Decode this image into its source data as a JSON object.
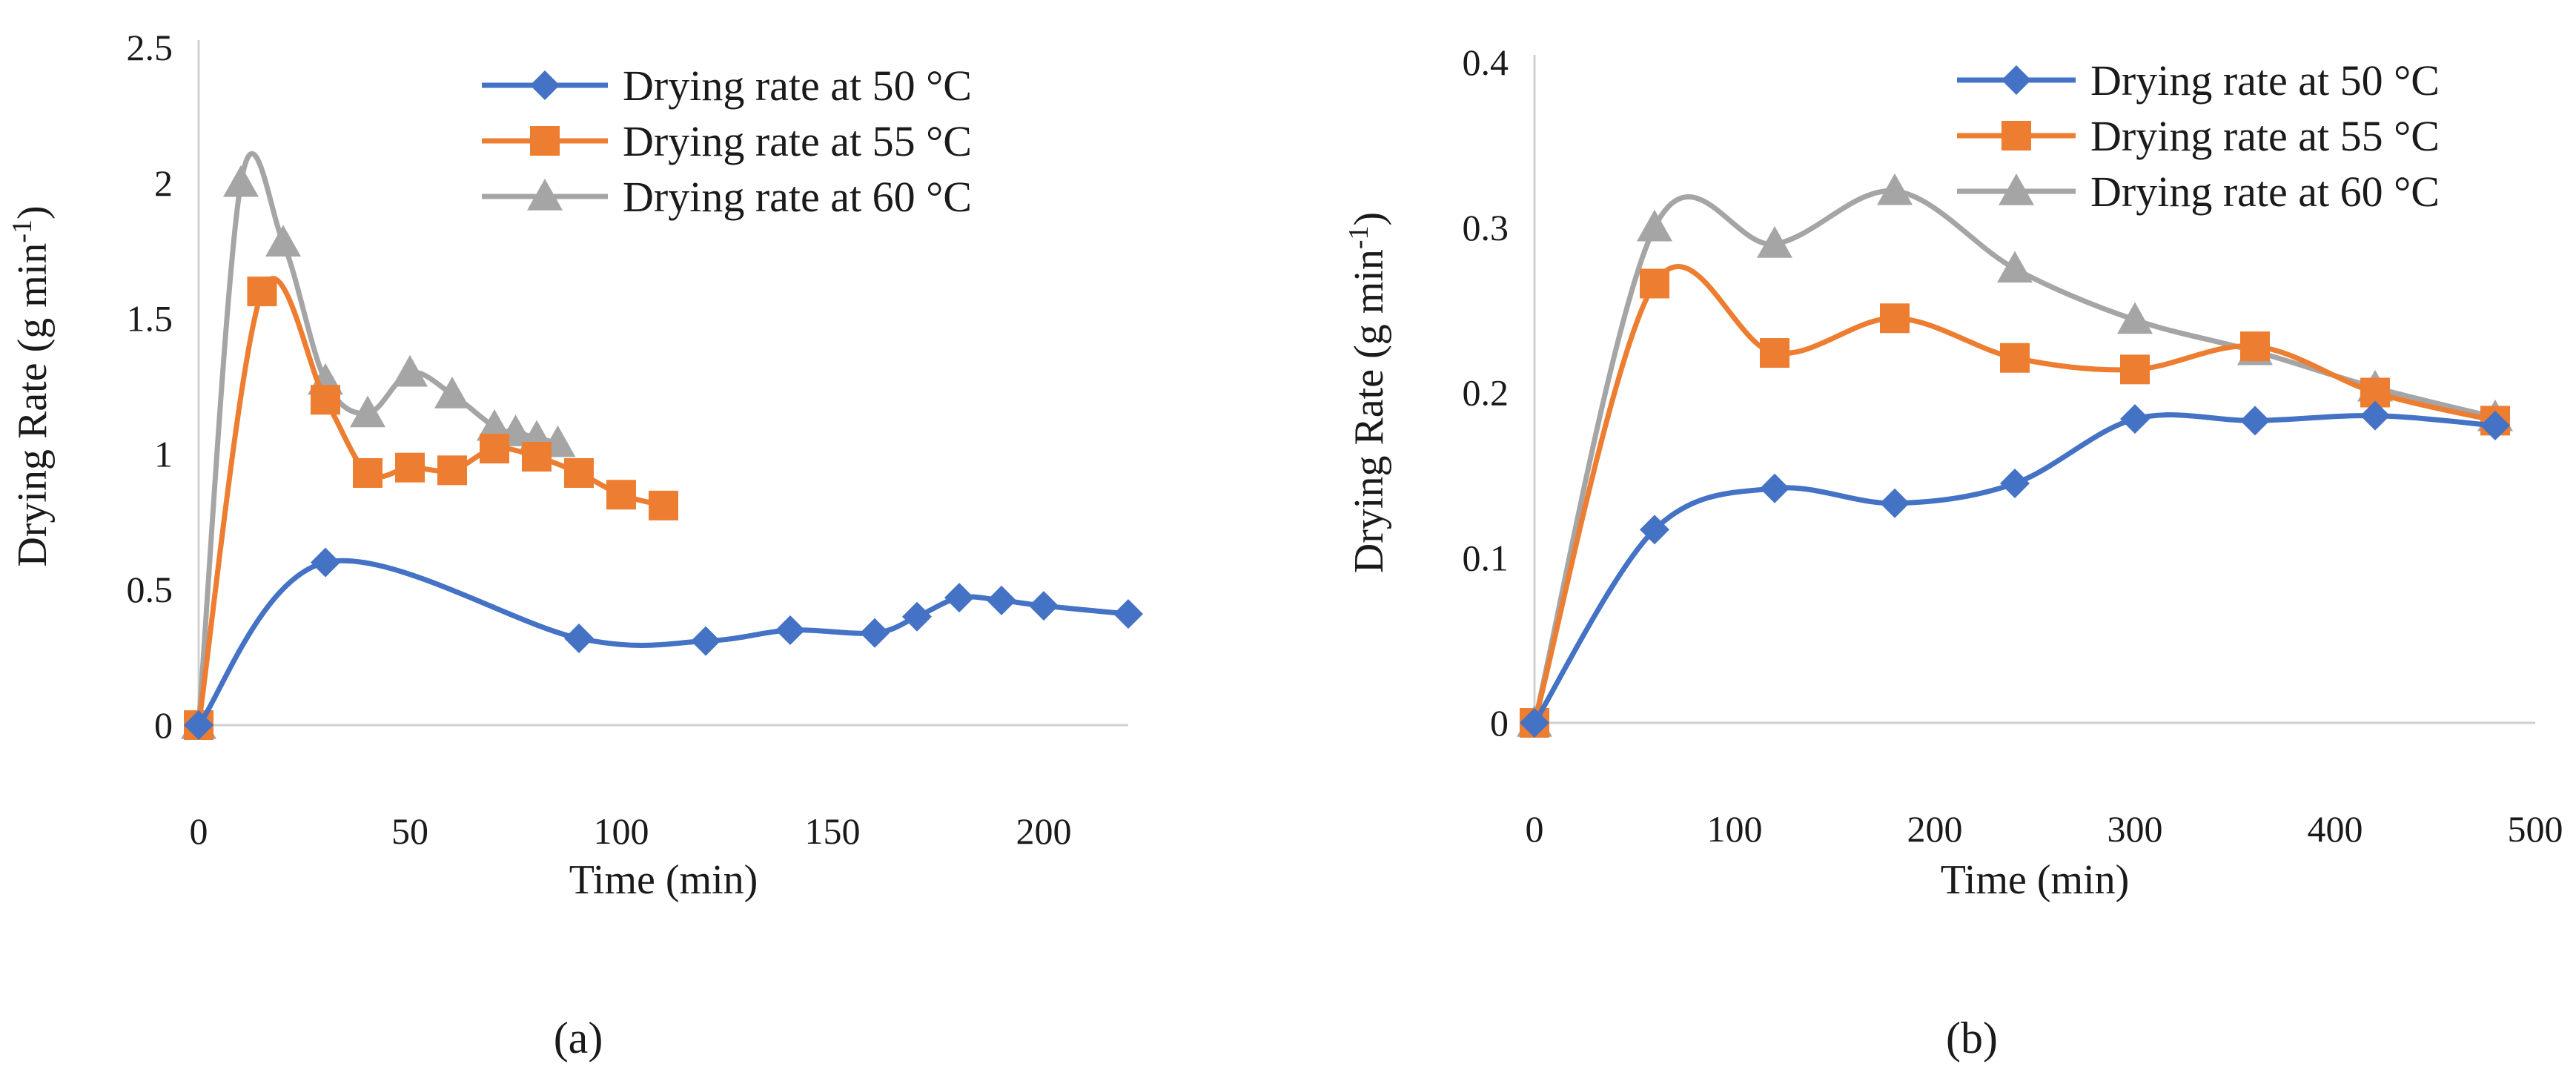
{
  "chart_data": [
    {
      "type": "line",
      "panel_label": "(a)",
      "xlabel": "Time (min)",
      "ylabel_main": "Drying Rate (g min",
      "ylabel_sup": "-1",
      "ylabel_close": ")",
      "xlim": [
        0,
        220
      ],
      "ylim": [
        0,
        2.5
      ],
      "xticks": [
        0,
        50,
        100,
        150,
        200
      ],
      "xtick_labels": [
        "0",
        "50",
        "100",
        "150",
        "200"
      ],
      "yticks": [
        0,
        0.5,
        1,
        1.5,
        2,
        2.5
      ],
      "ytick_labels": [
        "0",
        "0.5",
        "1",
        "1.5",
        "2",
        "2.5"
      ],
      "legend_position": "top-right",
      "series": [
        {
          "name": "Drying rate at 50 °C",
          "color": "#4472C4",
          "marker": "diamond",
          "x": [
            0,
            30,
            90,
            120,
            140,
            160,
            170,
            180,
            190,
            200,
            220
          ],
          "y": [
            0,
            0.6,
            0.32,
            0.31,
            0.35,
            0.34,
            0.4,
            0.47,
            0.46,
            0.44,
            0.41
          ]
        },
        {
          "name": "Drying rate at 55 °C",
          "color": "#ED7D31",
          "marker": "square",
          "x": [
            0,
            15,
            30,
            40,
            50,
            60,
            70,
            80,
            90,
            100,
            110
          ],
          "y": [
            0,
            1.6,
            1.2,
            0.93,
            0.95,
            0.94,
            1.02,
            0.99,
            0.93,
            0.85,
            0.81
          ]
        },
        {
          "name": "Drying rate at 60 °C",
          "color": "#A5A5A5",
          "marker": "triangle",
          "x": [
            0,
            10,
            20,
            30,
            40,
            50,
            60,
            70,
            75,
            80,
            85
          ],
          "y": [
            0,
            2.0,
            1.78,
            1.27,
            1.15,
            1.3,
            1.22,
            1.1,
            1.08,
            1.06,
            1.04
          ]
        }
      ]
    },
    {
      "type": "line",
      "panel_label": "(b)",
      "xlabel": "Time (min)",
      "ylabel_main": "Drying Rate (g min",
      "ylabel_sup": "-1",
      "ylabel_close": ")",
      "xlim": [
        0,
        500
      ],
      "ylim": [
        0,
        0.4
      ],
      "xticks": [
        0,
        100,
        200,
        300,
        400,
        500
      ],
      "xtick_labels": [
        "0",
        "100",
        "200",
        "300",
        "400",
        "500"
      ],
      "yticks": [
        0,
        0.1,
        0.2,
        0.3,
        0.4
      ],
      "ytick_labels": [
        "0",
        "0.1",
        "0.2",
        "0.3",
        "0.4"
      ],
      "legend_position": "top-right",
      "series": [
        {
          "name": "Drying rate at 50 °C",
          "color": "#4472C4",
          "marker": "diamond",
          "x": [
            0,
            60,
            120,
            180,
            240,
            300,
            360,
            420,
            480
          ],
          "y": [
            0,
            0.117,
            0.142,
            0.133,
            0.145,
            0.184,
            0.183,
            0.186,
            0.18
          ]
        },
        {
          "name": "Drying rate at 55 °C",
          "color": "#ED7D31",
          "marker": "square",
          "x": [
            0,
            60,
            120,
            180,
            240,
            300,
            360,
            420,
            480
          ],
          "y": [
            0,
            0.266,
            0.224,
            0.245,
            0.221,
            0.214,
            0.228,
            0.2,
            0.183
          ]
        },
        {
          "name": "Drying rate at 60 °C",
          "color": "#A5A5A5",
          "marker": "triangle",
          "x": [
            0,
            60,
            120,
            180,
            240,
            300,
            360,
            420,
            480
          ],
          "y": [
            0,
            0.3,
            0.29,
            0.322,
            0.275,
            0.244,
            0.225,
            0.203,
            0.185
          ]
        }
      ]
    }
  ]
}
